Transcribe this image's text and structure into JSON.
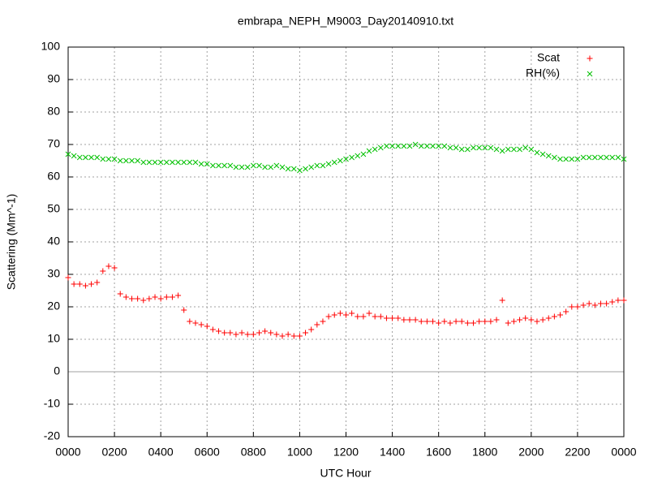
{
  "chart_data": {
    "type": "scatter",
    "title": "embrapa_NEPH_M9003_Day20140910.txt",
    "x_label": "UTC Hour",
    "y_label": "Scattering (Mm^-1)",
    "x": [
      0,
      0.25,
      0.5,
      0.75,
      1,
      1.25,
      1.5,
      1.75,
      2,
      2.25,
      2.5,
      2.75,
      3,
      3.25,
      3.5,
      3.75,
      4,
      4.25,
      4.5,
      4.75,
      5,
      5.25,
      5.5,
      5.75,
      6,
      6.25,
      6.5,
      6.75,
      7,
      7.25,
      7.5,
      7.75,
      8,
      8.25,
      8.5,
      8.75,
      9,
      9.25,
      9.5,
      9.75,
      10,
      10.25,
      10.5,
      10.75,
      11,
      11.25,
      11.5,
      11.75,
      12,
      12.25,
      12.5,
      12.75,
      13,
      13.25,
      13.5,
      13.75,
      14,
      14.25,
      14.5,
      14.75,
      15,
      15.25,
      15.5,
      15.75,
      16,
      16.25,
      16.5,
      16.75,
      17,
      17.25,
      17.5,
      17.75,
      18,
      18.25,
      18.5,
      18.75,
      19,
      19.25,
      19.5,
      19.75,
      20,
      20.25,
      20.5,
      20.75,
      21,
      21.25,
      21.5,
      21.75,
      22,
      22.25,
      22.5,
      22.75,
      23,
      23.25,
      23.5,
      23.75,
      24
    ],
    "series": [
      {
        "name": "Scat",
        "color": "#ff0000",
        "marker": "plus",
        "values": [
          29,
          27,
          27,
          26.5,
          27,
          27.5,
          31,
          32.5,
          32,
          24,
          23,
          22.5,
          22.5,
          22,
          22.5,
          23,
          22.5,
          23,
          23,
          23.5,
          19,
          15.5,
          15,
          14.5,
          14,
          13,
          12.5,
          12,
          12,
          11.5,
          12,
          11.5,
          11.5,
          12,
          12.5,
          12,
          11.5,
          11,
          11.5,
          11,
          11,
          12,
          13,
          14.5,
          15.5,
          17,
          17.5,
          18,
          17.5,
          18,
          17,
          17,
          18,
          17,
          17,
          16.5,
          16.5,
          16.5,
          16,
          16,
          16,
          15.5,
          15.5,
          15.5,
          15,
          15.5,
          15,
          15.5,
          15.5,
          15,
          15,
          15.5,
          15.5,
          15.5,
          16,
          22,
          15,
          15.5,
          16,
          16.5,
          16,
          15.5,
          16,
          16.5,
          17,
          17.5,
          18.5,
          20,
          20,
          20.5,
          21,
          20.5,
          21,
          21,
          21.5,
          22,
          22
        ]
      },
      {
        "name": "RH(%)",
        "color": "#00c000",
        "marker": "cross",
        "values": [
          67,
          66.5,
          66,
          66,
          66,
          66,
          65.5,
          65.5,
          65.5,
          65,
          65,
          65,
          65,
          64.5,
          64.5,
          64.5,
          64.5,
          64.5,
          64.5,
          64.5,
          64.5,
          64.5,
          64.5,
          64,
          64,
          63.5,
          63.5,
          63.5,
          63.5,
          63,
          63,
          63,
          63.5,
          63.5,
          63,
          63,
          63.5,
          63,
          62.5,
          62.5,
          62,
          62.5,
          63,
          63.5,
          63.5,
          64,
          64.5,
          65,
          65.5,
          66,
          66.5,
          67,
          68,
          68.5,
          69,
          69.5,
          69.5,
          69.5,
          69.5,
          69.5,
          70,
          69.5,
          69.5,
          69.5,
          69.5,
          69.5,
          69,
          69,
          68.5,
          68.5,
          69,
          69,
          69,
          69,
          68.5,
          68,
          68.5,
          68.5,
          68.5,
          69,
          68.5,
          67.5,
          67,
          66.5,
          66,
          65.5,
          65.5,
          65.5,
          65.5,
          66,
          66,
          66,
          66,
          66,
          66,
          66,
          65.5
        ]
      }
    ],
    "xlim": [
      0,
      24
    ],
    "xticks": [
      {
        "value": 0,
        "label": "0000"
      },
      {
        "value": 2,
        "label": "0200"
      },
      {
        "value": 4,
        "label": "0400"
      },
      {
        "value": 6,
        "label": "0600"
      },
      {
        "value": 8,
        "label": "0800"
      },
      {
        "value": 10,
        "label": "1000"
      },
      {
        "value": 12,
        "label": "1200"
      },
      {
        "value": 14,
        "label": "1400"
      },
      {
        "value": 16,
        "label": "1600"
      },
      {
        "value": 18,
        "label": "1800"
      },
      {
        "value": 20,
        "label": "2000"
      },
      {
        "value": 22,
        "label": "2200"
      },
      {
        "value": 24,
        "label": "0000"
      }
    ],
    "ylim": [
      -20,
      100
    ],
    "yticks": [
      -20,
      -10,
      0,
      10,
      20,
      30,
      40,
      50,
      60,
      70,
      80,
      90,
      100
    ],
    "grid": true,
    "legend": "top-right"
  }
}
